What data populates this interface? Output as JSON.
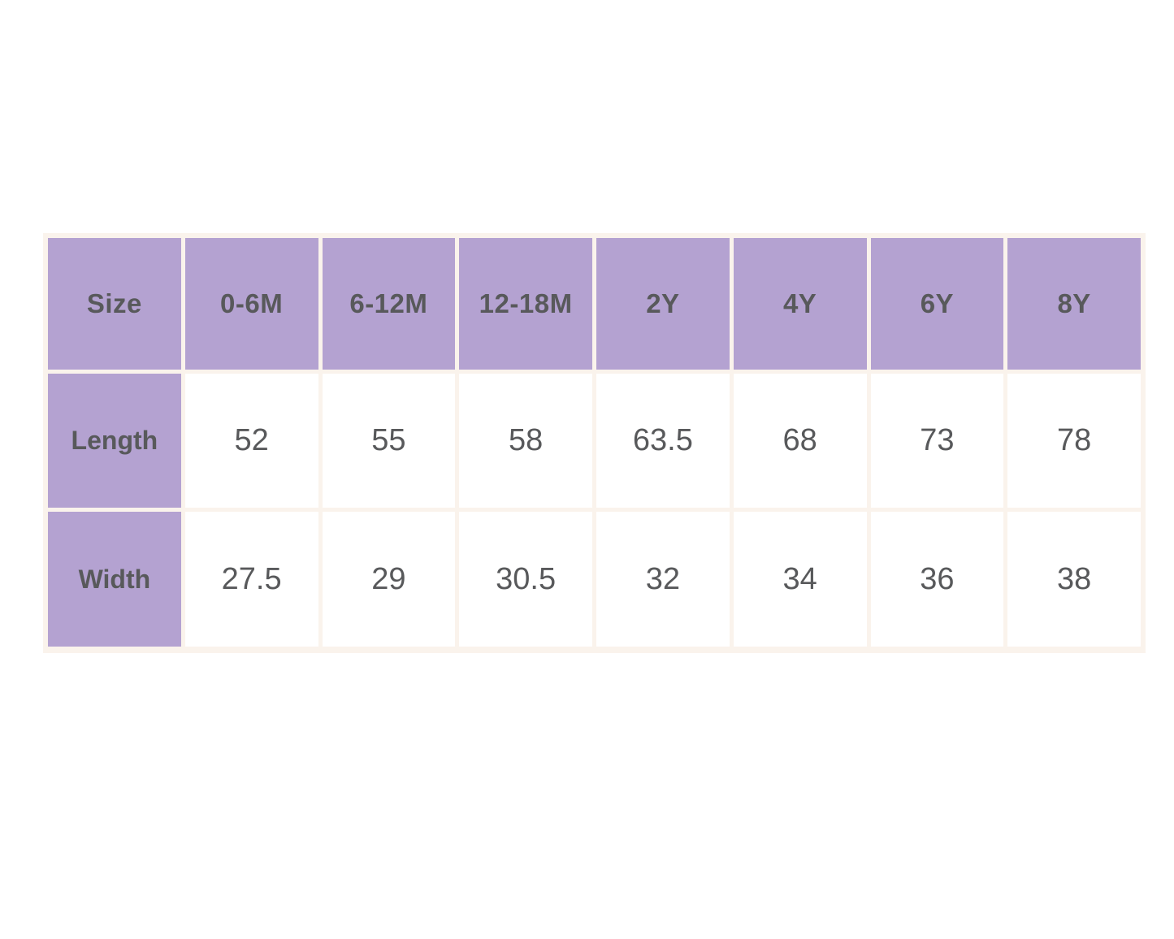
{
  "chart_data": {
    "type": "table",
    "columns": [
      "Size",
      "0-6M",
      "6-12M",
      "12-18M",
      "2Y",
      "4Y",
      "6Y",
      "8Y"
    ],
    "rows": [
      {
        "label": "Length",
        "values": [
          52,
          55,
          58,
          63.5,
          68,
          73,
          78
        ]
      },
      {
        "label": "Width",
        "values": [
          27.5,
          29,
          30.5,
          32,
          34,
          36,
          38
        ]
      }
    ]
  },
  "theme": {
    "header-bg": "#b4a2d1",
    "cell-bg": "#ffffff",
    "table-border": "#faf3ec",
    "text": "#58595b",
    "page-bg": "#ffffff"
  }
}
